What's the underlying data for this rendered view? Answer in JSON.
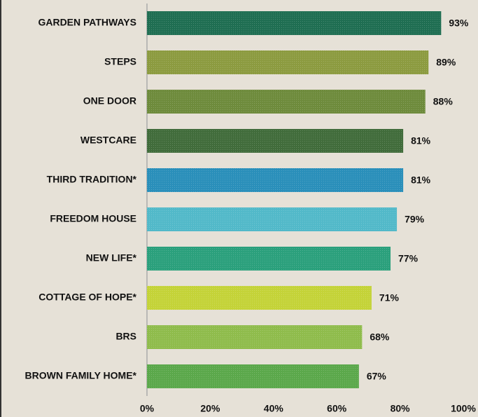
{
  "chart_data": {
    "type": "hbar",
    "categories": [
      "GARDEN PATHWAYS",
      "STEPS",
      "ONE DOOR",
      "WESTCARE",
      "THIRD TRADITION*",
      "FREEDOM HOUSE",
      "NEW LIFE*",
      "COTTAGE OF HOPE*",
      "BRS",
      "BROWN FAMILY HOME*"
    ],
    "values": [
      93,
      89,
      88,
      81,
      81,
      79,
      77,
      71,
      68,
      67
    ],
    "value_labels": [
      "93%",
      "89%",
      "88%",
      "81%",
      "81%",
      "79%",
      "77%",
      "71%",
      "68%",
      "67%"
    ],
    "colors": [
      "#1f6e52",
      "#8c9b40",
      "#6e8b3c",
      "#416c3b",
      "#2a8fba",
      "#52b9c9",
      "#2ba07c",
      "#c4d338",
      "#8fbc4c",
      "#5ba84b"
    ],
    "xlim": [
      0,
      100
    ],
    "xticks": [
      {
        "value": 0,
        "label": "0%"
      },
      {
        "value": 20,
        "label": "20%"
      },
      {
        "value": 40,
        "label": "40%"
      },
      {
        "value": 60,
        "label": "60%"
      },
      {
        "value": 80,
        "label": "80%"
      },
      {
        "value": 100,
        "label": "100%"
      }
    ]
  }
}
